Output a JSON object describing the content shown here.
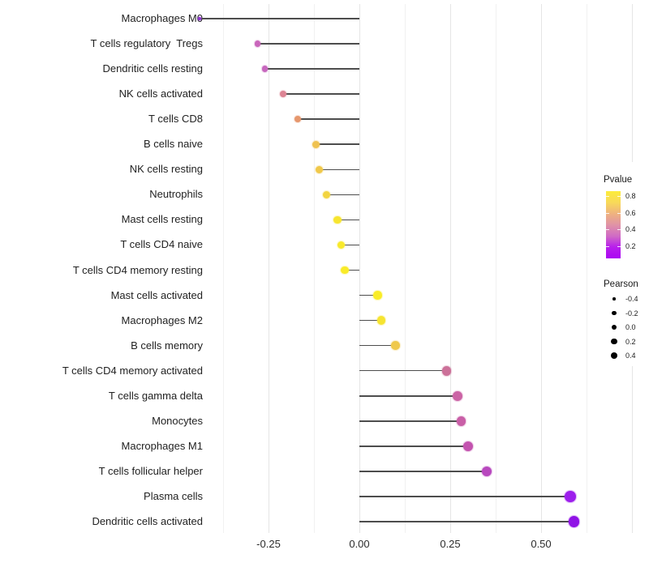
{
  "chart_data": {
    "type": "lollipop",
    "title": "",
    "xlabel": "",
    "ylabel": "",
    "x_tick_labels": [
      "-0.25",
      "0.00",
      "0.25",
      "0.50"
    ],
    "x_tick_values": [
      -0.25,
      0.0,
      0.25,
      0.5
    ],
    "x_axis_range": [
      -0.42,
      0.78
    ],
    "grid": {
      "major": [
        -0.25,
        0.0,
        0.25,
        0.5,
        0.75
      ],
      "minor": [
        -0.375,
        -0.125,
        0.125,
        0.375,
        0.625
      ]
    },
    "points": [
      {
        "label": "Macrophages M0",
        "pearson": -0.44,
        "color": "#8F35D5"
      },
      {
        "label": "T cells regulatory  Tregs",
        "pearson": -0.28,
        "color": "#C966BB"
      },
      {
        "label": "Dendritic cells resting",
        "pearson": -0.26,
        "color": "#C767BE"
      },
      {
        "label": "NK cells activated",
        "pearson": -0.21,
        "color": "#DD8494"
      },
      {
        "label": "T cells CD8",
        "pearson": -0.17,
        "color": "#E6976D"
      },
      {
        "label": "B cells naive",
        "pearson": -0.12,
        "color": "#EFC250"
      },
      {
        "label": "NK cells resting",
        "pearson": -0.11,
        "color": "#F0C84A"
      },
      {
        "label": "Neutrophils",
        "pearson": -0.09,
        "color": "#F2D440"
      },
      {
        "label": "Mast cells resting",
        "pearson": -0.06,
        "color": "#F7E52F"
      },
      {
        "label": "T cells CD4 naive",
        "pearson": -0.05,
        "color": "#F8E92B"
      },
      {
        "label": "T cells CD4 memory resting",
        "pearson": -0.04,
        "color": "#F9EB28"
      },
      {
        "label": "Mast cells activated",
        "pearson": 0.05,
        "color": "#F9EC27"
      },
      {
        "label": "Macrophages M2",
        "pearson": 0.06,
        "color": "#F6E431"
      },
      {
        "label": "B cells memory",
        "pearson": 0.1,
        "color": "#EFC94C"
      },
      {
        "label": "T cells CD4 memory activated",
        "pearson": 0.24,
        "color": "#CC7199"
      },
      {
        "label": "T cells gamma delta",
        "pearson": 0.27,
        "color": "#CB63A5"
      },
      {
        "label": "Monocytes",
        "pearson": 0.28,
        "color": "#C95FA7"
      },
      {
        "label": "Macrophages M1",
        "pearson": 0.3,
        "color": "#C353AF"
      },
      {
        "label": "T cells follicular helper",
        "pearson": 0.35,
        "color": "#B848BE"
      },
      {
        "label": "Plasma cells",
        "pearson": 0.58,
        "color": "#9D1FEC"
      },
      {
        "label": "Dendritic cells activated",
        "pearson": 0.59,
        "color": "#9013E6"
      }
    ],
    "legend_pvalue": {
      "title": "Pvalue",
      "tick_labels": [
        "0.8",
        "0.6",
        "0.4",
        "0.2"
      ],
      "gradient_top_to_bottom": [
        "#FCEC3A",
        "#F8D95A",
        "#EFB37E",
        "#E093A6",
        "#D06BC5",
        "#B81FEC",
        "#AB07F2"
      ]
    },
    "legend_pearson": {
      "title": "Pearson",
      "items": [
        {
          "label": "-0.4",
          "value": -0.4
        },
        {
          "label": "-0.2",
          "value": -0.2
        },
        {
          "label": "0.0",
          "value": 0.0
        },
        {
          "label": "0.2",
          "value": 0.2
        },
        {
          "label": "0.4",
          "value": 0.4
        }
      ]
    }
  },
  "colors": {
    "stem": "#4D4D4D",
    "grid_major": "#E5E5E5",
    "grid_minor": "#F1F1F1",
    "axis_text": "#2B2B2B",
    "background": "#FFFFFF",
    "legend_dot": "#000000"
  }
}
